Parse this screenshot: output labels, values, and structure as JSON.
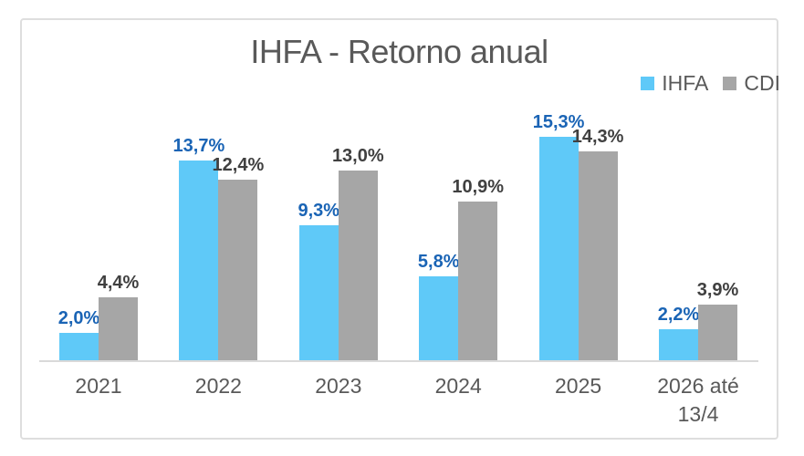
{
  "chart_data": {
    "type": "bar",
    "title": "IHFA - Retorno anual",
    "categories": [
      "2021",
      "2022",
      "2023",
      "2024",
      "2025",
      "2026 até 13/4"
    ],
    "series": [
      {
        "name": "IHFA",
        "values": [
          2.0,
          13.7,
          9.3,
          5.8,
          15.3,
          2.2
        ],
        "labels": [
          "2,0%",
          "13,7%",
          "9,3%",
          "5,8%",
          "15,3%",
          "2,2%"
        ],
        "bar_color": "#5FC9F8",
        "label_color": "#1A64B5"
      },
      {
        "name": "CDI",
        "values": [
          4.4,
          12.4,
          13.0,
          10.9,
          14.3,
          3.9
        ],
        "labels": [
          "4,4%",
          "12,4%",
          "13,0%",
          "10,9%",
          "14,3%",
          "3,9%"
        ],
        "bar_color": "#A6A6A6",
        "label_color": "#404040"
      }
    ],
    "xlabel": "",
    "ylabel": "",
    "ylim": [
      0,
      18
    ],
    "grid": false,
    "legend_position": "top-right",
    "value_labels_shown": true,
    "unit": "%"
  },
  "colors": {
    "frame_border": "#DEDEDE",
    "axis_line": "#D9D9D9",
    "text": "#595959",
    "background": "#FFFFFF"
  }
}
